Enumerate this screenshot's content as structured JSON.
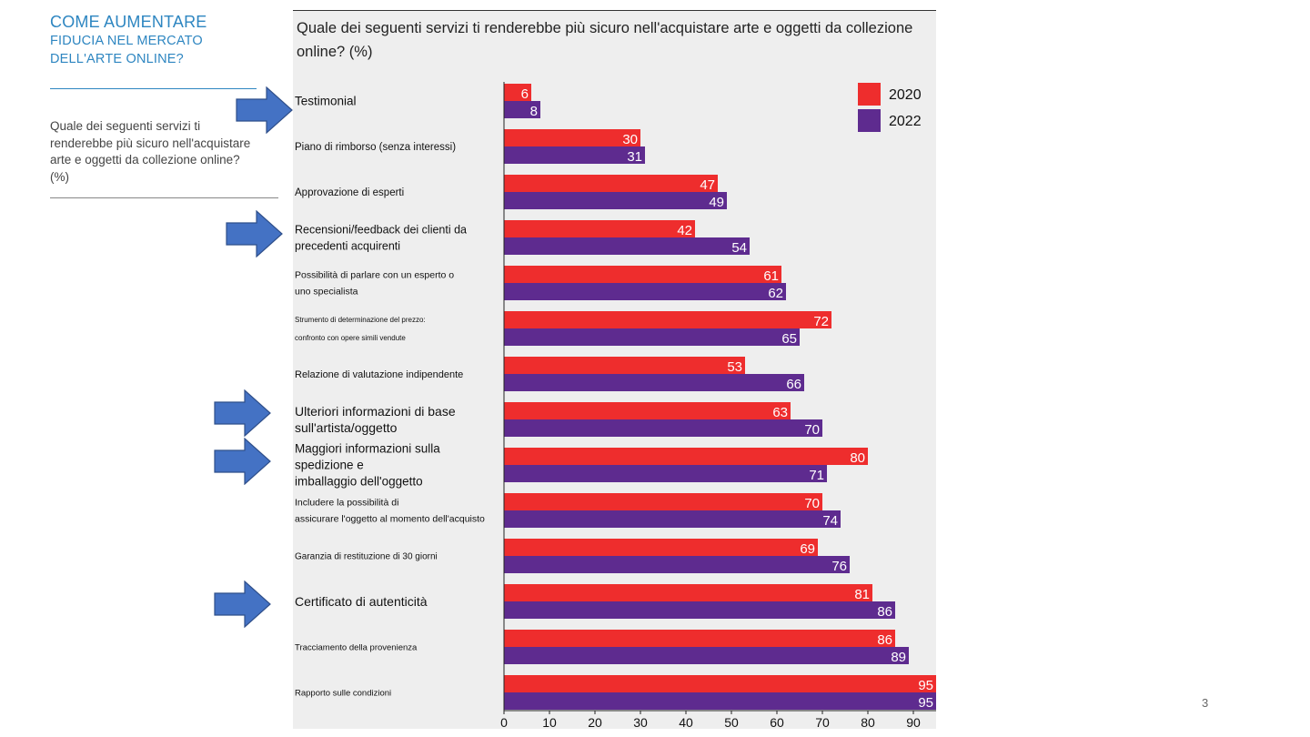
{
  "sidebar": {
    "title_line1": "COME AUMENTARE",
    "title_line2": "FIDUCIA NEL MERCATO",
    "title_line3": "DELL'ARTE ONLINE?",
    "question": "Quale dei seguenti servizi ti renderebbe più sicuro nell'acquistare arte e oggetti da collezione online? (%)"
  },
  "page_number": "3",
  "chart_data": {
    "type": "bar",
    "orientation": "horizontal",
    "title": "Quale dei seguenti servizi ti renderebbe più sicuro nell'acquistare arte e oggetti da collezione online? (%)",
    "xlabel": "",
    "ylabel": "",
    "xlim": [
      0,
      95
    ],
    "xticks": [
      0,
      10,
      20,
      30,
      40,
      50,
      60,
      70,
      80,
      90
    ],
    "grid": false,
    "legend_position": "top-right",
    "categories": [
      "Testimonial",
      "Piano di rimborso (senza interessi)",
      "Approvazione di esperti",
      "Recensioni/feedback dei clienti da precedenti acquirenti",
      "Possibilità di parlare con un esperto o uno specialista",
      "Strumento di determinazione del prezzo: confronto con opere simili vendute",
      "Relazione di valutazione indipendente",
      "Ulteriori informazioni di base sull'artista/oggetto",
      "Maggiori informazioni sulla spedizione e imballaggio dell'oggetto",
      "Includere la possibilità di assicurare l'oggetto al momento dell'acquisto",
      "Garanzia di restituzione di 30 giorni",
      "Certificato di autenticità",
      "Tracciamento della provenienza",
      "Rapporto sulle condizioni"
    ],
    "series": [
      {
        "name": "2020",
        "color": "#ee2d2d",
        "values": [
          6,
          30,
          47,
          42,
          61,
          72,
          53,
          63,
          80,
          70,
          69,
          81,
          86,
          95
        ]
      },
      {
        "name": "2022",
        "color": "#5e2b8f",
        "values": [
          8,
          31,
          49,
          54,
          62,
          65,
          66,
          70,
          71,
          74,
          76,
          86,
          89,
          95
        ]
      }
    ],
    "highlighted_categories": [
      0,
      3,
      7,
      8,
      11
    ],
    "arrow_color": "#4472c4"
  }
}
